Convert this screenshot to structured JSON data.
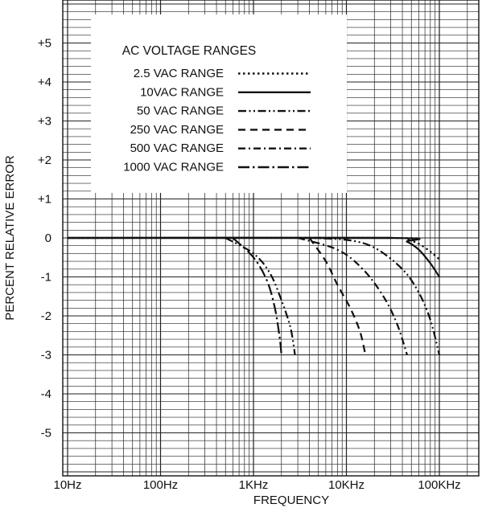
{
  "chart_data": {
    "type": "line",
    "xlabel": "FREQUENCY",
    "ylabel": "PERCENT RELATIVE ERROR",
    "x_scale": "log",
    "xlim_hz": [
      10,
      200000
    ],
    "ylim": [
      -6.5,
      6.5
    ],
    "grid": true,
    "x_ticks": [
      {
        "value": 10,
        "label": "10Hz"
      },
      {
        "value": 100,
        "label": "100Hz"
      },
      {
        "value": 1000,
        "label": "1KHz"
      },
      {
        "value": 10000,
        "label": "10KHz"
      },
      {
        "value": 100000,
        "label": "100KHz"
      }
    ],
    "y_ticks": [
      {
        "value": 5,
        "label": "+5"
      },
      {
        "value": 4,
        "label": "+4"
      },
      {
        "value": 3,
        "label": "+3"
      },
      {
        "value": 2,
        "label": "+2"
      },
      {
        "value": 1,
        "label": "+1"
      },
      {
        "value": 0,
        "label": "0"
      },
      {
        "value": -1,
        "label": "-1"
      },
      {
        "value": -2,
        "label": "-2"
      },
      {
        "value": -3,
        "label": "-3"
      },
      {
        "value": -4,
        "label": "-4"
      },
      {
        "value": -5,
        "label": "-5"
      }
    ],
    "legend": {
      "title": "AC VOLTAGE RANGES",
      "placement": "top-left"
    },
    "series": [
      {
        "name": "2.5 VAC RANGE",
        "dash": "dot",
        "points": [
          [
            10,
            0
          ],
          [
            30000,
            0
          ],
          [
            45000,
            -0.05
          ],
          [
            60000,
            -0.15
          ],
          [
            80000,
            -0.35
          ],
          [
            100000,
            -0.55
          ]
        ]
      },
      {
        "name": "10VAC RANGE",
        "dash": "solid",
        "points": [
          [
            10,
            0
          ],
          [
            30000,
            0
          ],
          [
            45000,
            -0.1
          ],
          [
            60000,
            -0.3
          ],
          [
            80000,
            -0.65
          ],
          [
            100000,
            -1.0
          ]
        ]
      },
      {
        "name": "50 VAC RANGE",
        "dash": "dash-dot-dot",
        "points": [
          [
            500,
            0
          ],
          [
            1000,
            -0.4
          ],
          [
            1500,
            -0.9
          ],
          [
            2000,
            -1.6
          ],
          [
            2500,
            -2.3
          ],
          [
            2800,
            -3.0
          ]
        ]
      },
      {
        "name": "250 VAC RANGE",
        "dash": "dash",
        "points": [
          [
            4000,
            0
          ],
          [
            6000,
            -0.6
          ],
          [
            8000,
            -1.2
          ],
          [
            11000,
            -1.8
          ],
          [
            14000,
            -2.4
          ],
          [
            16000,
            -3.0
          ]
        ]
      },
      {
        "name": "500 VAC RANGE",
        "dash": "dash-dot",
        "points": [
          [
            3000,
            0
          ],
          [
            8000,
            -0.3
          ],
          [
            15000,
            -0.8
          ],
          [
            25000,
            -1.5
          ],
          [
            35000,
            -2.2
          ],
          [
            45000,
            -3.0
          ]
        ]
      },
      {
        "name": "1000 VAC RANGE",
        "dash": "long-dash-dot",
        "points": [
          [
            600,
            0
          ],
          [
            1000,
            -0.5
          ],
          [
            1400,
            -1.1
          ],
          [
            1700,
            -1.8
          ],
          [
            1900,
            -2.5
          ],
          [
            2000,
            -3.0
          ]
        ]
      },
      {
        "name": "",
        "dash": "dash-dot-dot",
        "points": [
          [
            3500,
            0
          ],
          [
            10000,
            -0.05
          ],
          [
            20000,
            -0.25
          ],
          [
            40000,
            -0.8
          ],
          [
            60000,
            -1.4
          ],
          [
            80000,
            -2.1
          ],
          [
            100000,
            -3.0
          ]
        ]
      }
    ]
  }
}
